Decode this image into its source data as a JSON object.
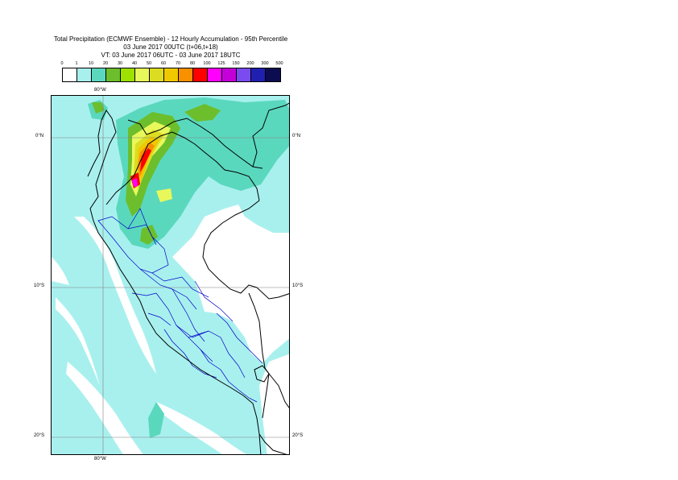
{
  "title": {
    "line1": "Total Precipitation (ECMWF Ensemble) - 12 Hourly Accumulation - 95th Percentile",
    "line2": "03 June 2017 00UTC (t+06,t+18)",
    "line3": "VT: 03 June 2017 06UTC - 03 June 2017 18UTC"
  },
  "legend": {
    "labels": [
      "0",
      "1",
      "10",
      "20",
      "30",
      "40",
      "50",
      "60",
      "70",
      "80",
      "100",
      "125",
      "150",
      "200",
      "300",
      "500"
    ],
    "colors": [
      "#ffffff",
      "#a8f0ee",
      "#5ad8be",
      "#6cbe2c",
      "#9ee000",
      "#e8f85a",
      "#dcdc22",
      "#f0c800",
      "#f89000",
      "#ff0000",
      "#ff00ff",
      "#c400d8",
      "#7a4cf0",
      "#2020b0",
      "#0c0c50"
    ]
  },
  "map": {
    "lat_labels": [
      "0°N",
      "10°S",
      "20°S"
    ],
    "lon_label_top": "80°W",
    "lon_label_bottom": "80°W",
    "colors": {
      "ocean_fill": "#a8f0ee",
      "land_fill": "#ffffff",
      "coast": "#000000",
      "admin_border": "#0000cc",
      "grid": "#808080"
    }
  }
}
